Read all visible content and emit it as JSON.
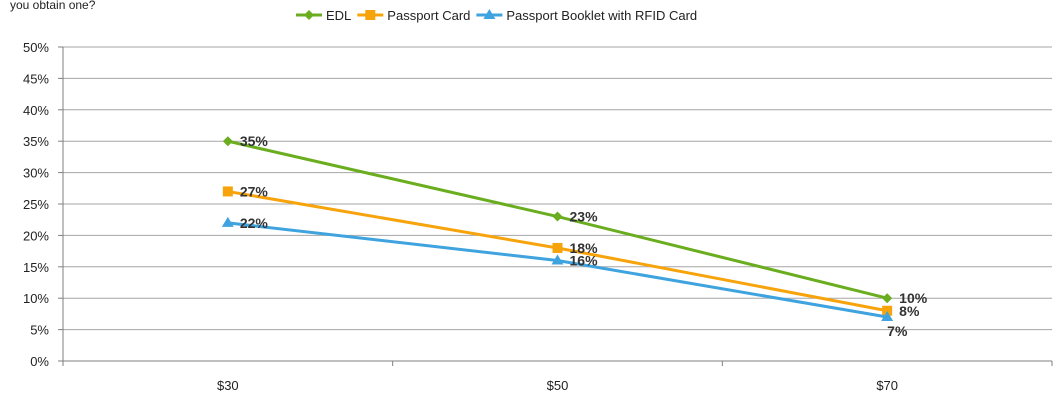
{
  "chart_data": {
    "type": "line",
    "title_fragment": "you obtain one?",
    "categories": [
      "$30",
      "$50",
      "$70"
    ],
    "series": [
      {
        "name": "EDL",
        "values": [
          35,
          23,
          10
        ],
        "color": "#6aad1e",
        "marker": "diamond",
        "labels": [
          "35%",
          "23%",
          "10%"
        ]
      },
      {
        "name": "Passport Card",
        "values": [
          27,
          18,
          8
        ],
        "color": "#f7a30b",
        "marker": "square",
        "labels": [
          "27%",
          "18%",
          "8%"
        ]
      },
      {
        "name": "Passport Booklet with RFID Card",
        "values": [
          22,
          16,
          7
        ],
        "color": "#3ea3de",
        "marker": "triangle",
        "labels": [
          "22%",
          "16%",
          "7%"
        ]
      }
    ],
    "ylim": [
      0,
      50
    ],
    "yticks": [
      "0%",
      "5%",
      "10%",
      "15%",
      "20%",
      "25%",
      "30%",
      "35%",
      "40%",
      "45%",
      "50%"
    ],
    "grid": true,
    "legend_position": "top-center"
  }
}
